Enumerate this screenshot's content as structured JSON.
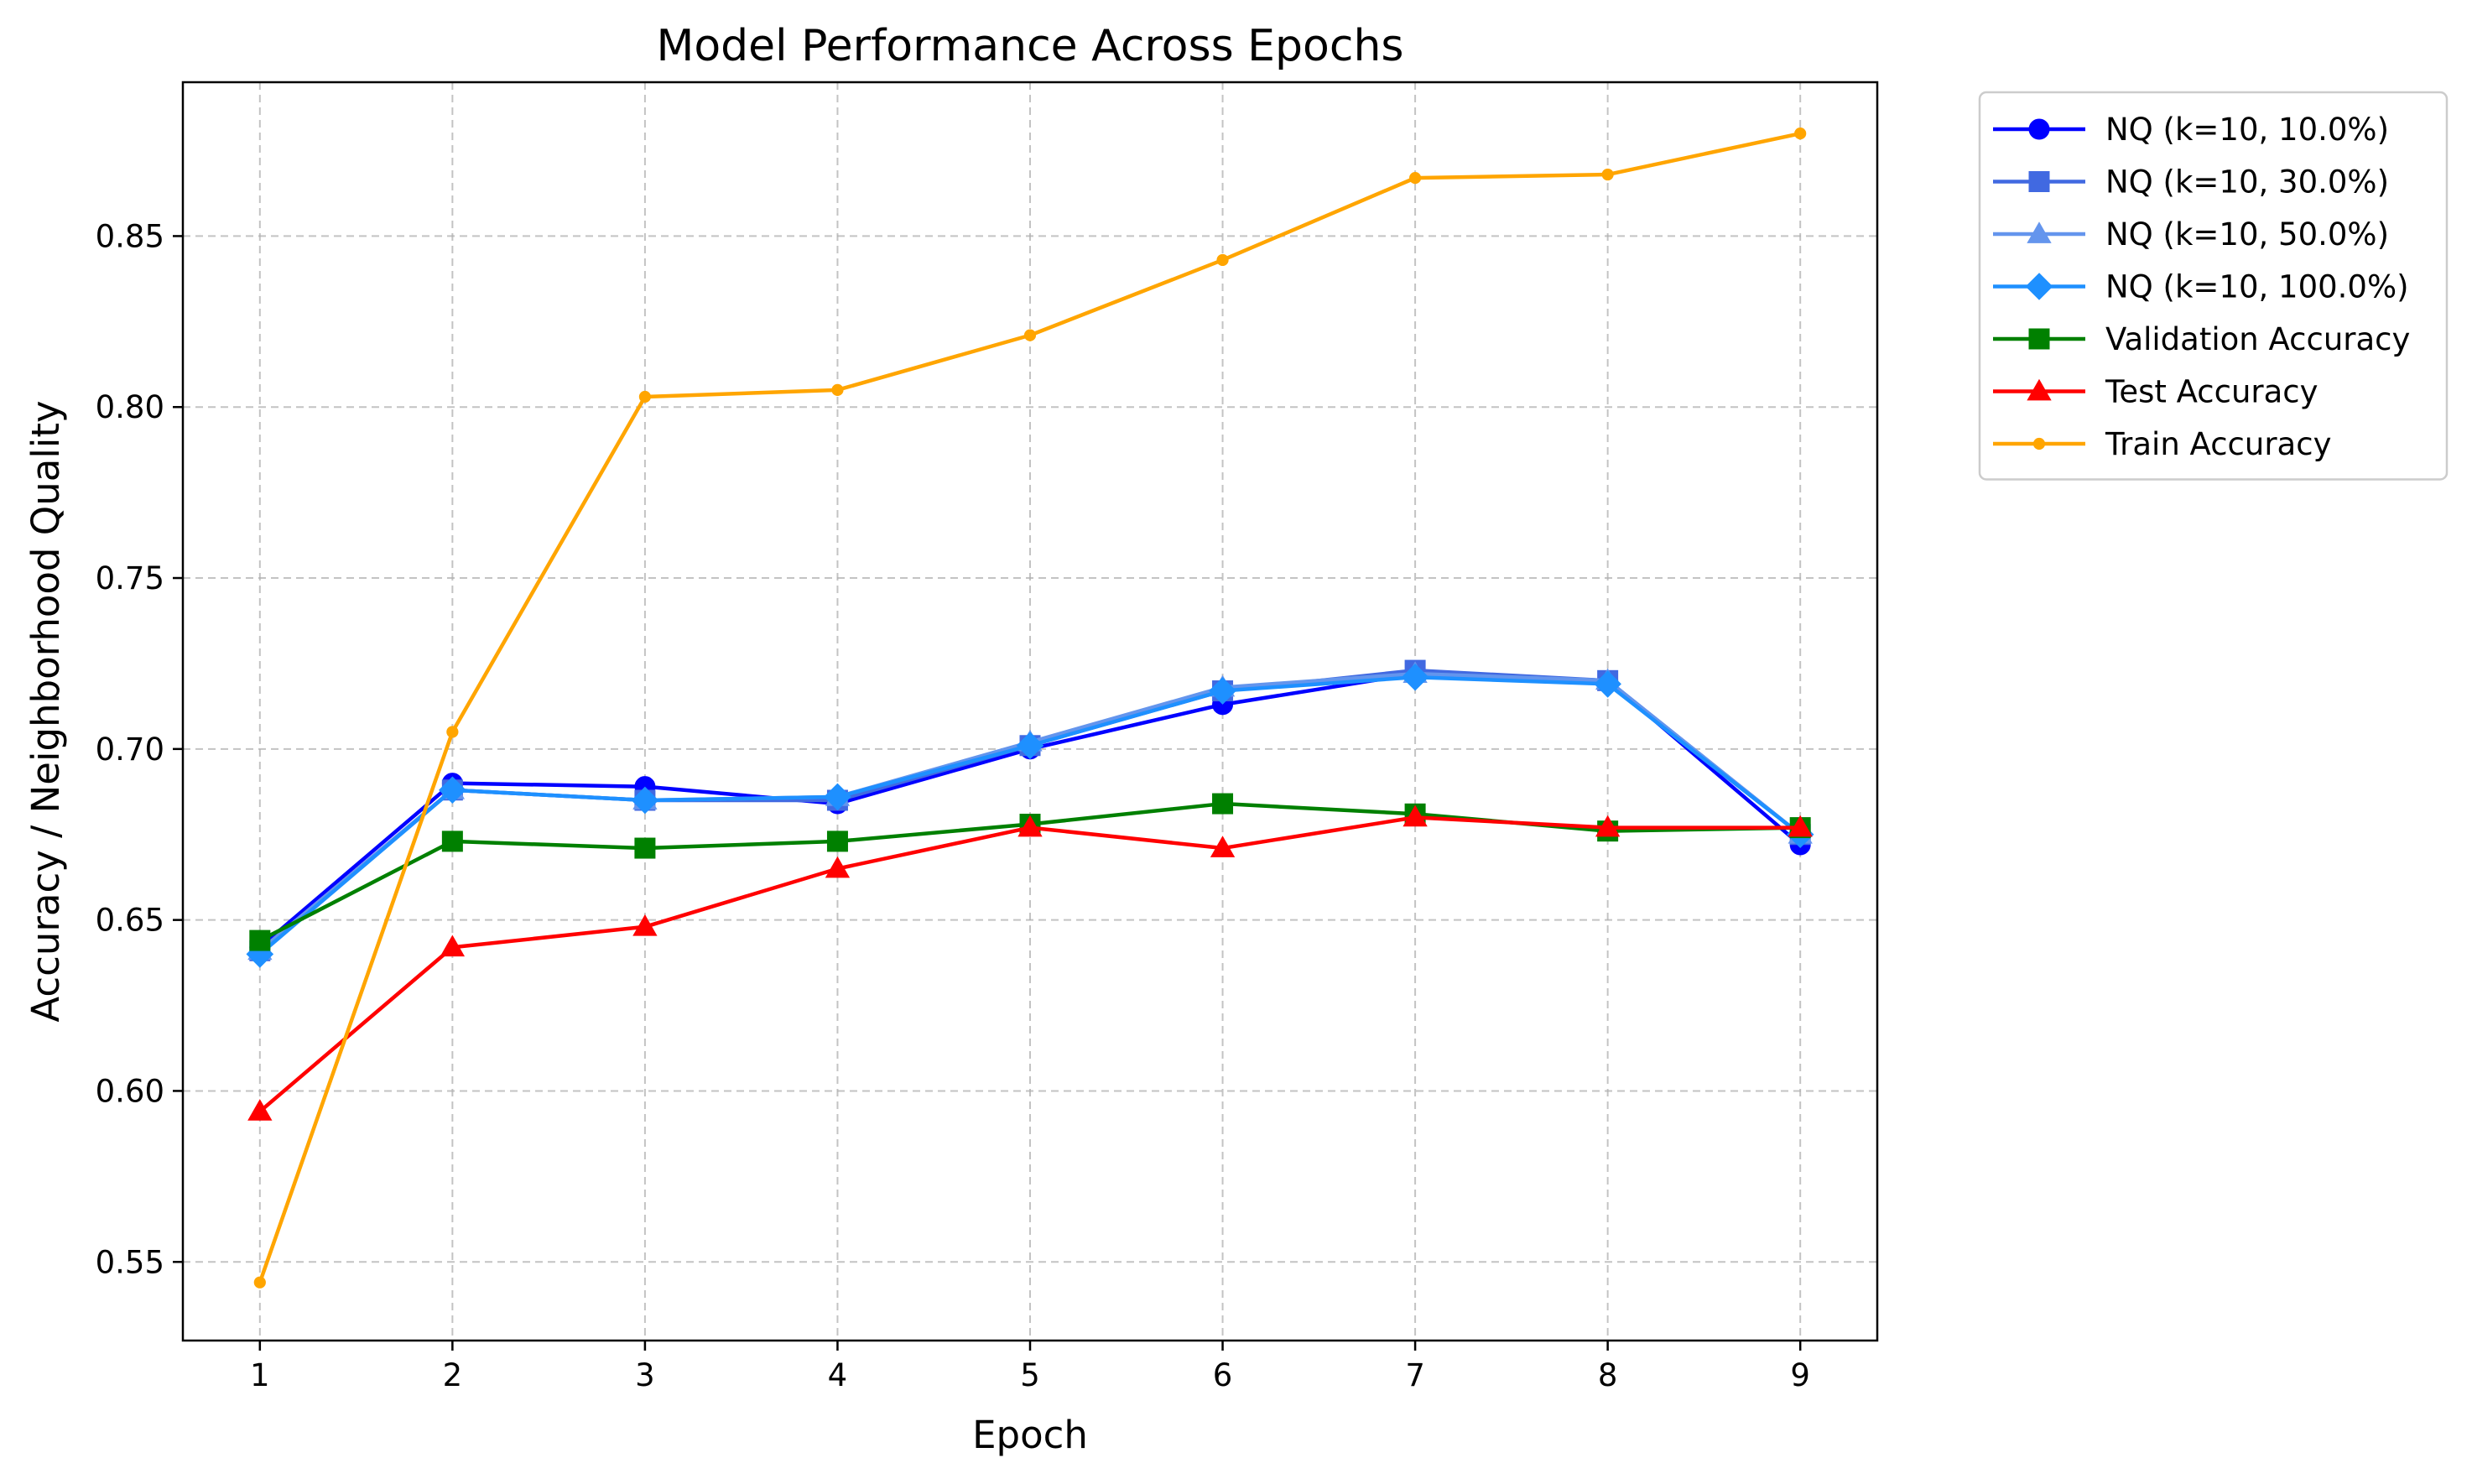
{
  "chart_data": {
    "type": "line",
    "title": "Model Performance Across Epochs",
    "xlabel": "Epoch",
    "ylabel": "Accuracy / Neighborhood Quality",
    "x": [
      1,
      2,
      3,
      4,
      5,
      6,
      7,
      8,
      9
    ],
    "xlim": [
      0.6,
      9.4
    ],
    "ylim": [
      0.527,
      0.895
    ],
    "x_ticks": [
      "1",
      "2",
      "3",
      "4",
      "5",
      "6",
      "7",
      "8",
      "9"
    ],
    "y_ticks": [
      0.55,
      0.6,
      0.65,
      0.7,
      0.75,
      0.8,
      0.85
    ],
    "y_tick_labels": [
      "0.55",
      "0.60",
      "0.65",
      "0.70",
      "0.75",
      "0.80",
      "0.85"
    ],
    "grid": true,
    "legend_position": "outside-top-right",
    "series": [
      {
        "name": "NQ (k=10, 10.0%)",
        "color": "#0000ff",
        "marker": "circle",
        "values": [
          0.642,
          0.69,
          0.689,
          0.684,
          0.7,
          0.713,
          0.722,
          0.72,
          0.672
        ]
      },
      {
        "name": "NQ (k=10, 30.0%)",
        "color": "#4169e1",
        "marker": "square",
        "values": [
          0.641,
          0.688,
          0.685,
          0.685,
          0.701,
          0.717,
          0.723,
          0.72,
          0.675
        ]
      },
      {
        "name": "NQ (k=10, 50.0%)",
        "color": "#6495ed",
        "marker": "triangle",
        "values": [
          0.641,
          0.688,
          0.685,
          0.686,
          0.702,
          0.718,
          0.722,
          0.72,
          0.675
        ]
      },
      {
        "name": "NQ (k=10, 100.0%)",
        "color": "#1e90ff",
        "marker": "diamond",
        "values": [
          0.64,
          0.688,
          0.685,
          0.686,
          0.701,
          0.717,
          0.721,
          0.719,
          0.675
        ]
      },
      {
        "name": "Validation Accuracy",
        "color": "#008000",
        "marker": "square",
        "values": [
          0.644,
          0.673,
          0.671,
          0.673,
          0.678,
          0.684,
          0.681,
          0.676,
          0.677
        ]
      },
      {
        "name": "Test Accuracy",
        "color": "#ff0000",
        "marker": "triangle",
        "values": [
          0.594,
          0.642,
          0.648,
          0.665,
          0.677,
          0.671,
          0.68,
          0.677,
          0.677
        ]
      },
      {
        "name": "Train Accuracy",
        "color": "#ffa500",
        "marker": "dot",
        "values": [
          0.544,
          0.705,
          0.803,
          0.805,
          0.821,
          0.843,
          0.867,
          0.868,
          0.88
        ]
      }
    ]
  }
}
